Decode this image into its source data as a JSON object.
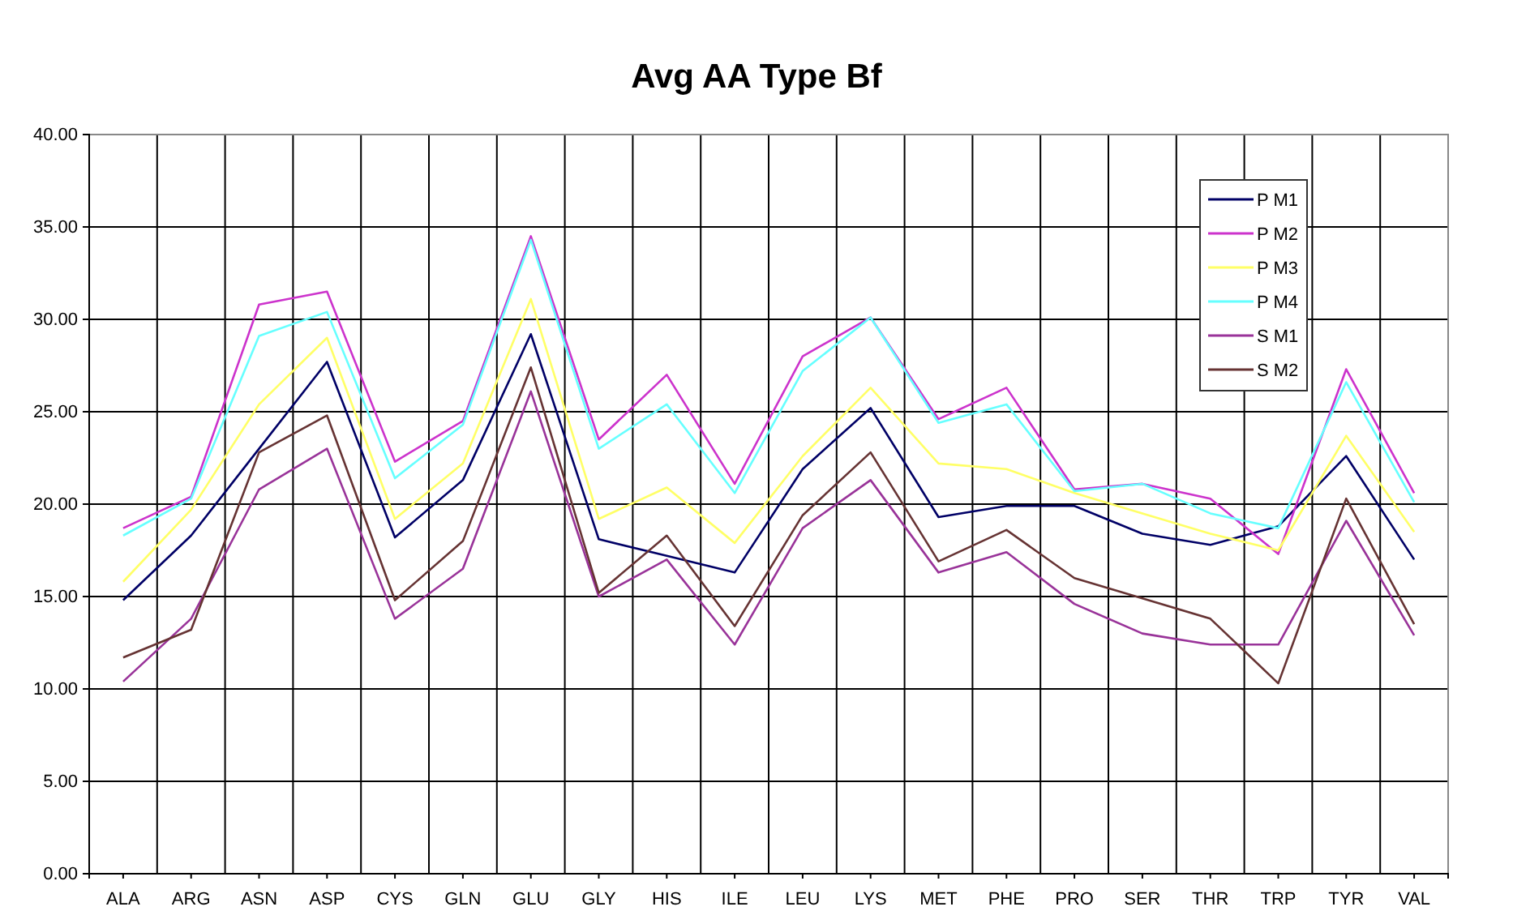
{
  "chart_data": {
    "type": "line",
    "title": "Avg AA Type Bf",
    "categories": [
      "ALA",
      "ARG",
      "ASN",
      "ASP",
      "CYS",
      "GLN",
      "GLU",
      "GLY",
      "HIS",
      "ILE",
      "LEU",
      "LYS",
      "MET",
      "PHE",
      "PRO",
      "SER",
      "THR",
      "TRP",
      "TYR",
      "VAL"
    ],
    "series": [
      {
        "name": "P M1",
        "color": "#000066",
        "values": [
          14.8,
          18.3,
          23.0,
          27.7,
          18.2,
          21.3,
          29.2,
          18.1,
          17.2,
          16.3,
          21.9,
          25.2,
          19.3,
          19.9,
          19.9,
          18.4,
          17.8,
          18.8,
          22.6,
          17.0
        ]
      },
      {
        "name": "P M2",
        "color": "#cc33cc",
        "values": [
          18.7,
          20.4,
          30.8,
          31.5,
          22.3,
          24.5,
          34.5,
          23.5,
          27.0,
          21.1,
          28.0,
          30.1,
          24.6,
          26.3,
          20.8,
          21.1,
          20.3,
          17.3,
          27.3,
          20.6
        ]
      },
      {
        "name": "P M3",
        "color": "#ffff66",
        "values": [
          15.8,
          19.7,
          25.4,
          29.0,
          19.2,
          22.2,
          31.1,
          19.2,
          20.9,
          17.9,
          22.6,
          26.3,
          22.2,
          21.9,
          20.6,
          19.5,
          18.4,
          17.5,
          23.7,
          18.5
        ]
      },
      {
        "name": "P M4",
        "color": "#66ffff",
        "values": [
          18.3,
          20.3,
          29.1,
          30.4,
          21.4,
          24.3,
          34.3,
          23.0,
          25.4,
          20.6,
          27.2,
          30.1,
          24.4,
          25.4,
          20.7,
          21.1,
          19.5,
          18.7,
          26.6,
          20.1
        ]
      },
      {
        "name": "S M1",
        "color": "#993399",
        "values": [
          10.4,
          13.8,
          20.8,
          23.0,
          13.8,
          16.5,
          26.1,
          15.0,
          17.0,
          12.4,
          18.7,
          21.3,
          16.3,
          17.4,
          14.6,
          13.0,
          12.4,
          12.4,
          19.1,
          12.9
        ]
      },
      {
        "name": "S M2",
        "color": "#663333",
        "values": [
          11.7,
          13.2,
          22.8,
          24.8,
          14.8,
          18.0,
          27.4,
          15.2,
          18.3,
          13.4,
          19.4,
          22.8,
          16.9,
          18.6,
          16.0,
          14.9,
          13.8,
          10.3,
          20.3,
          13.5
        ]
      }
    ],
    "ylim": [
      0,
      40
    ],
    "yticks": [
      {
        "value": 0,
        "label": "0.00"
      },
      {
        "value": 5,
        "label": "5.00"
      },
      {
        "value": 10,
        "label": "10.00"
      },
      {
        "value": 15,
        "label": "15.00"
      },
      {
        "value": 20,
        "label": "20.00"
      },
      {
        "value": 25,
        "label": "25.00"
      },
      {
        "value": 30,
        "label": "30.00"
      },
      {
        "value": 35,
        "label": "35.00"
      },
      {
        "value": 40,
        "label": "40.00"
      }
    ],
    "grid": true,
    "legend": "top right",
    "marker": "none",
    "line_style": "solid"
  }
}
